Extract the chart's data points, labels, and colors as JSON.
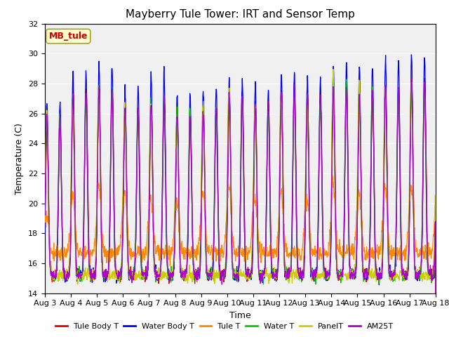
{
  "title": "Mayberry Tule Tower: IRT and Sensor Temp",
  "xlabel": "Time",
  "ylabel": "Temperature (C)",
  "ylim": [
    14,
    32
  ],
  "yticks": [
    14,
    16,
    18,
    20,
    22,
    24,
    26,
    28,
    30,
    32
  ],
  "xtick_labels": [
    "Aug 3",
    "Aug 4",
    "Aug 5",
    "Aug 6",
    "Aug 7",
    "Aug 8",
    "Aug 9",
    "Aug 10",
    "Aug 11",
    "Aug 12",
    "Aug 13",
    "Aug 14",
    "Aug 15",
    "Aug 16",
    "Aug 17",
    "Aug 18"
  ],
  "legend_labels": [
    "Tule Body T",
    "Water Body T",
    "Tule T",
    "Water T",
    "PanelT",
    "AM25T"
  ],
  "line_colors": [
    "#dd0000",
    "#0000ff",
    "#ff8800",
    "#00cc00",
    "#cccc00",
    "#aa00cc"
  ],
  "annotation_text": "MB_tule",
  "annotation_color": "#cc0000",
  "annotation_bg": "#ffffcc",
  "plot_bg": "#f0f0f0",
  "fig_bg": "#ffffff",
  "n_days": 15,
  "dt_hours": 0.25
}
